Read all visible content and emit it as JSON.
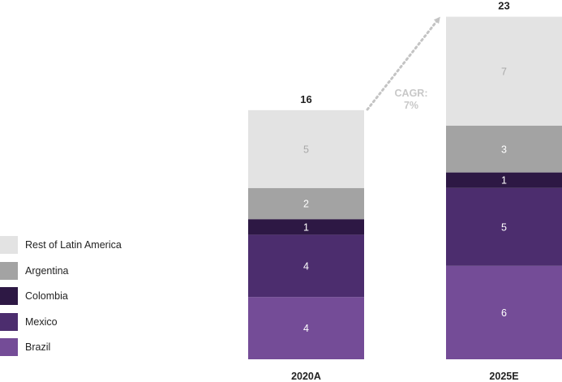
{
  "chart_data": {
    "type": "bar",
    "stacked": true,
    "categories": [
      "2020A",
      "2025E"
    ],
    "totals": [
      "16",
      "23"
    ],
    "series": [
      {
        "name": "Brazil",
        "values": [
          4,
          6
        ],
        "color": "#744c97"
      },
      {
        "name": "Mexico",
        "values": [
          4,
          5
        ],
        "color": "#4c2d6e"
      },
      {
        "name": "Colombia",
        "values": [
          1,
          1
        ],
        "color": "#2d1844"
      },
      {
        "name": "Argentina",
        "values": [
          2,
          3
        ],
        "color": "#a3a3a3"
      },
      {
        "name": "Rest of Latin America",
        "values": [
          5,
          7
        ],
        "color": "#e3e3e3"
      }
    ],
    "annotation": {
      "line1": "CAGR:",
      "line2": "7%"
    },
    "legend_position": "left",
    "grid": false
  }
}
